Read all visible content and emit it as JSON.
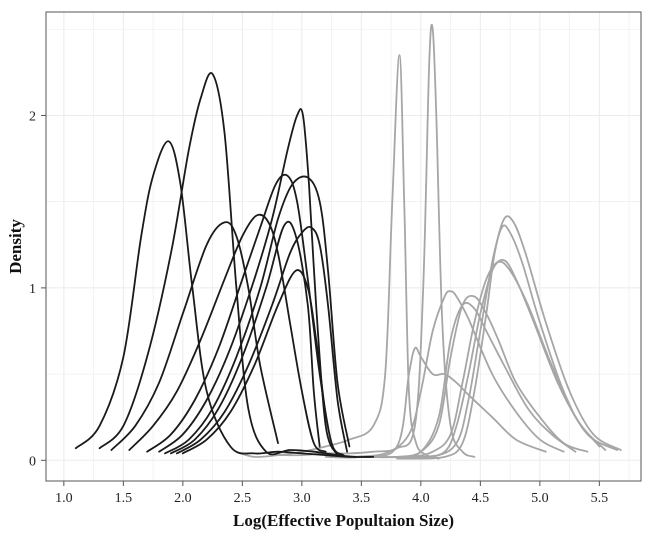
{
  "chart_data": {
    "type": "line",
    "title": "",
    "xlabel": "Log(Effective Popultaion Size)",
    "ylabel": "Density",
    "xlim": [
      0.85,
      5.85
    ],
    "ylim": [
      -0.12,
      2.6
    ],
    "x_ticks": [
      "1.0",
      "1.5",
      "2.0",
      "2.5",
      "3.0",
      "3.5",
      "4.0",
      "4.5",
      "5.0",
      "5.5"
    ],
    "y_ticks": [
      "0",
      "1",
      "2"
    ],
    "grid": true,
    "legend": "none",
    "colors": {
      "dark": "#1a1a1a",
      "light": "#a6a6a6",
      "grid": "#ebebeb",
      "axis": "#555555"
    },
    "series": [
      {
        "group": "dark",
        "x": [
          1.1,
          1.3,
          1.5,
          1.65,
          1.75,
          1.88,
          1.98,
          2.08,
          2.2,
          2.4,
          2.6,
          2.8,
          3.0,
          3.2,
          3.4,
          3.6
        ],
        "y": [
          0.07,
          0.2,
          0.6,
          1.3,
          1.65,
          1.85,
          1.6,
          1.0,
          0.4,
          0.08,
          0.04,
          0.05,
          0.04,
          0.03,
          0.02,
          0.02
        ]
      },
      {
        "group": "dark",
        "x": [
          1.3,
          1.5,
          1.7,
          1.9,
          2.05,
          2.15,
          2.25,
          2.35,
          2.45,
          2.55,
          2.7,
          2.9,
          3.1,
          3.3,
          3.45
        ],
        "y": [
          0.07,
          0.2,
          0.6,
          1.2,
          1.8,
          2.1,
          2.24,
          1.9,
          1.0,
          0.3,
          0.05,
          0.06,
          0.05,
          0.03,
          0.02
        ]
      },
      {
        "group": "dark",
        "x": [
          1.4,
          1.6,
          1.8,
          2.0,
          2.2,
          2.35,
          2.45,
          2.55,
          2.65,
          2.8
        ],
        "y": [
          0.06,
          0.2,
          0.45,
          0.85,
          1.25,
          1.38,
          1.3,
          1.0,
          0.55,
          0.1
        ]
      },
      {
        "group": "dark",
        "x": [
          1.55,
          1.75,
          1.95,
          2.15,
          2.35,
          2.5,
          2.62,
          2.72,
          2.8,
          2.9,
          3.0,
          3.1,
          3.2
        ],
        "y": [
          0.06,
          0.2,
          0.4,
          0.7,
          1.05,
          1.3,
          1.42,
          1.38,
          1.2,
          0.8,
          0.4,
          0.1,
          0.05
        ]
      },
      {
        "group": "dark",
        "x": [
          1.7,
          1.9,
          2.1,
          2.3,
          2.5,
          2.65,
          2.78,
          2.88,
          2.96,
          3.05,
          3.15,
          3.25,
          3.35
        ],
        "y": [
          0.05,
          0.15,
          0.35,
          0.65,
          1.05,
          1.35,
          1.6,
          1.65,
          1.5,
          1.05,
          0.5,
          0.1,
          0.03
        ]
      },
      {
        "group": "dark",
        "x": [
          1.8,
          2.0,
          2.2,
          2.4,
          2.6,
          2.75,
          2.88,
          2.96,
          3.01,
          3.06,
          3.12,
          3.2,
          3.3
        ],
        "y": [
          0.05,
          0.15,
          0.35,
          0.65,
          1.05,
          1.4,
          1.8,
          2.0,
          2.0,
          1.6,
          0.9,
          0.2,
          0.03
        ]
      },
      {
        "group": "dark",
        "x": [
          1.85,
          2.05,
          2.25,
          2.45,
          2.65,
          2.8,
          2.92,
          3.05,
          3.15,
          3.22,
          3.3,
          3.4
        ],
        "y": [
          0.04,
          0.12,
          0.3,
          0.6,
          1.0,
          1.4,
          1.6,
          1.64,
          1.5,
          1.1,
          0.45,
          0.08
        ]
      },
      {
        "group": "dark",
        "x": [
          1.9,
          2.1,
          2.3,
          2.5,
          2.7,
          2.85,
          2.95,
          3.05,
          3.1,
          3.15
        ],
        "y": [
          0.04,
          0.12,
          0.3,
          0.6,
          1.0,
          1.36,
          1.3,
          0.9,
          0.4,
          0.08
        ]
      },
      {
        "group": "dark",
        "x": [
          1.95,
          2.15,
          2.35,
          2.55,
          2.75,
          2.9,
          3.0,
          3.08,
          3.15,
          3.22,
          3.3,
          3.38
        ],
        "y": [
          0.04,
          0.12,
          0.28,
          0.55,
          0.9,
          1.2,
          1.32,
          1.35,
          1.25,
          0.9,
          0.35,
          0.05
        ]
      },
      {
        "group": "dark",
        "x": [
          2.0,
          2.2,
          2.4,
          2.6,
          2.8,
          2.95,
          3.05,
          3.12,
          3.2
        ],
        "y": [
          0.04,
          0.12,
          0.28,
          0.55,
          0.9,
          1.1,
          1.0,
          0.7,
          0.25
        ]
      },
      {
        "group": "light",
        "x": [
          2.45,
          2.6,
          2.8,
          3.0,
          3.2,
          3.4,
          3.6,
          3.7,
          3.76,
          3.82,
          3.86,
          3.9,
          3.96,
          4.05,
          4.15
        ],
        "y": [
          0.05,
          0.02,
          0.03,
          0.05,
          0.08,
          0.12,
          0.2,
          0.5,
          1.5,
          2.35,
          1.5,
          0.4,
          0.1,
          0.03,
          0.01
        ]
      },
      {
        "group": "light",
        "x": [
          2.8,
          3.0,
          3.2,
          3.4,
          3.6,
          3.8,
          3.95,
          4.02,
          4.07,
          4.1,
          4.13,
          4.18,
          4.25,
          4.35,
          4.45
        ],
        "y": [
          0.03,
          0.03,
          0.04,
          0.04,
          0.05,
          0.07,
          0.2,
          1.0,
          2.3,
          2.5,
          2.0,
          0.8,
          0.2,
          0.05,
          0.02
        ]
      },
      {
        "group": "light",
        "x": [
          3.2,
          3.5,
          3.8,
          3.9,
          3.95,
          4.0,
          4.1,
          4.2,
          4.3,
          4.4,
          4.6,
          4.8,
          5.05
        ],
        "y": [
          0.02,
          0.02,
          0.08,
          0.5,
          0.65,
          0.6,
          0.5,
          0.5,
          0.45,
          0.38,
          0.25,
          0.12,
          0.05
        ]
      },
      {
        "group": "light",
        "x": [
          3.4,
          3.7,
          3.9,
          4.0,
          4.1,
          4.2,
          4.25,
          4.3,
          4.4,
          4.6,
          4.8,
          5.0,
          5.2
        ],
        "y": [
          0.02,
          0.04,
          0.15,
          0.4,
          0.75,
          0.95,
          0.98,
          0.95,
          0.82,
          0.5,
          0.28,
          0.12,
          0.05
        ]
      },
      {
        "group": "light",
        "x": [
          3.5,
          3.8,
          4.0,
          4.15,
          4.25,
          4.35,
          4.45,
          4.55,
          4.65,
          4.8,
          5.0,
          5.2,
          5.4
        ],
        "y": [
          0.02,
          0.02,
          0.05,
          0.2,
          0.6,
          0.9,
          0.95,
          0.85,
          0.7,
          0.45,
          0.25,
          0.1,
          0.05
        ]
      },
      {
        "group": "light",
        "x": [
          3.5,
          3.8,
          4.0,
          4.15,
          4.25,
          4.35,
          4.45,
          4.55,
          4.7,
          4.9,
          5.1,
          5.3
        ],
        "y": [
          0.02,
          0.02,
          0.05,
          0.25,
          0.7,
          0.9,
          0.88,
          0.75,
          0.55,
          0.3,
          0.15,
          0.05
        ]
      },
      {
        "group": "light",
        "x": [
          3.6,
          3.9,
          4.1,
          4.25,
          4.35,
          4.45,
          4.55,
          4.65,
          4.75,
          4.9,
          5.1,
          5.3,
          5.5
        ],
        "y": [
          0.02,
          0.02,
          0.05,
          0.15,
          0.45,
          0.8,
          1.05,
          1.15,
          1.1,
          0.9,
          0.55,
          0.25,
          0.08
        ]
      },
      {
        "group": "light",
        "x": [
          3.7,
          4.0,
          4.2,
          4.3,
          4.4,
          4.5,
          4.6,
          4.7,
          4.8,
          4.95,
          5.15,
          5.35,
          5.55
        ],
        "y": [
          0.02,
          0.02,
          0.05,
          0.2,
          0.5,
          0.85,
          1.1,
          1.16,
          1.05,
          0.8,
          0.45,
          0.2,
          0.06
        ]
      },
      {
        "group": "light",
        "x": [
          3.8,
          4.1,
          4.3,
          4.4,
          4.5,
          4.6,
          4.68,
          4.75,
          4.85,
          5.0,
          5.2,
          5.4,
          5.65
        ],
        "y": [
          0.01,
          0.02,
          0.1,
          0.35,
          0.75,
          1.15,
          1.35,
          1.32,
          1.15,
          0.8,
          0.4,
          0.15,
          0.06
        ]
      },
      {
        "group": "light",
        "x": [
          3.9,
          4.2,
          4.35,
          4.45,
          4.55,
          4.62,
          4.7,
          4.78,
          4.88,
          5.05,
          5.25,
          5.45,
          5.68
        ],
        "y": [
          0.01,
          0.02,
          0.1,
          0.4,
          0.85,
          1.2,
          1.4,
          1.38,
          1.2,
          0.8,
          0.4,
          0.15,
          0.06
        ]
      }
    ]
  }
}
